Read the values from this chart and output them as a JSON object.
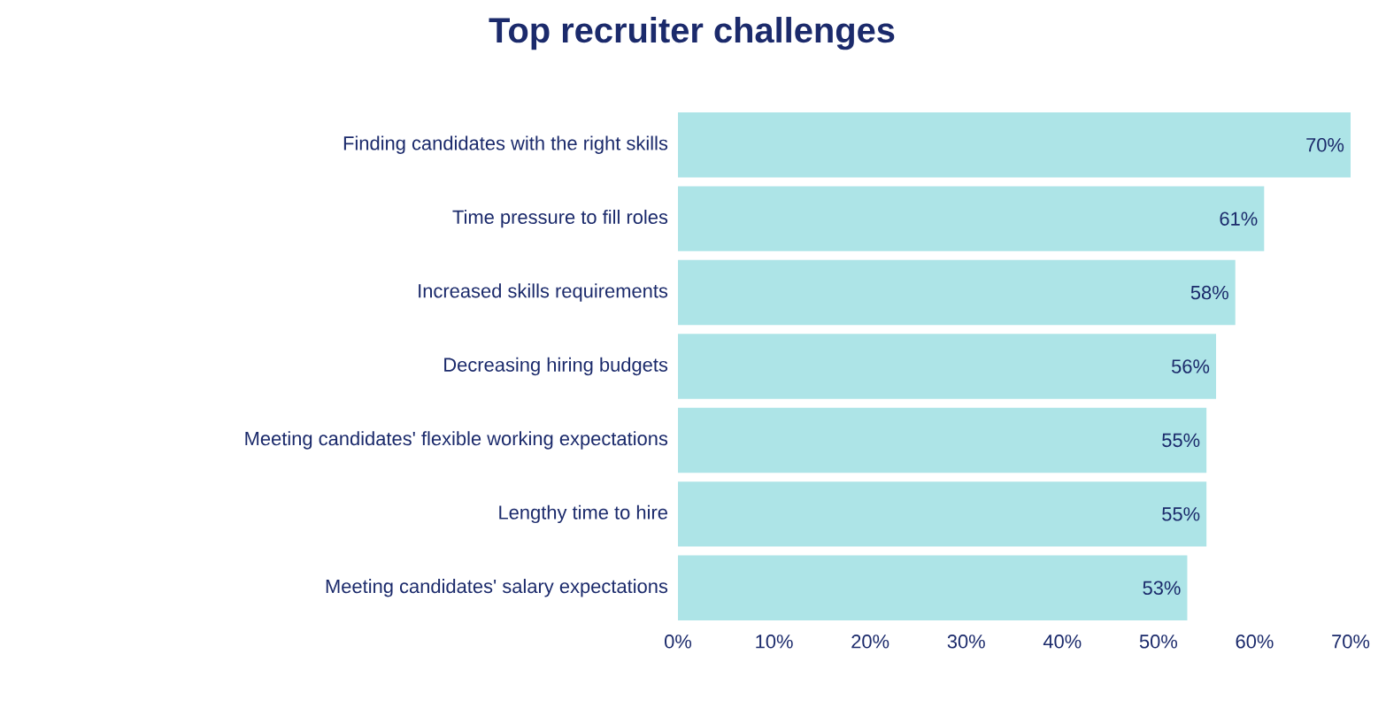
{
  "chart_data": {
    "type": "bar",
    "orientation": "horizontal",
    "title": "Top recruiter challenges",
    "categories": [
      "Finding candidates with the right skills",
      "Time pressure to fill roles",
      "Increased skills requirements",
      "Decreasing hiring budgets",
      "Meeting candidates' flexible working expectations",
      "Lengthy time to hire",
      "Meeting candidates' salary expectations"
    ],
    "values": [
      70,
      61,
      58,
      56,
      55,
      55,
      53
    ],
    "value_labels": [
      "70%",
      "61%",
      "58%",
      "56%",
      "55%",
      "55%",
      "53%"
    ],
    "color": "#ade4e7",
    "xlim": [
      0,
      70
    ],
    "xticks": [
      {
        "value": 0,
        "label": "0%"
      },
      {
        "value": 10,
        "label": "10%"
      },
      {
        "value": 20,
        "label": "20%"
      },
      {
        "value": 30,
        "label": "30%"
      },
      {
        "value": 40,
        "label": "40%"
      },
      {
        "value": 50,
        "label": "50%"
      },
      {
        "value": 60,
        "label": "60%"
      },
      {
        "value": 70,
        "label": "70%"
      }
    ]
  }
}
